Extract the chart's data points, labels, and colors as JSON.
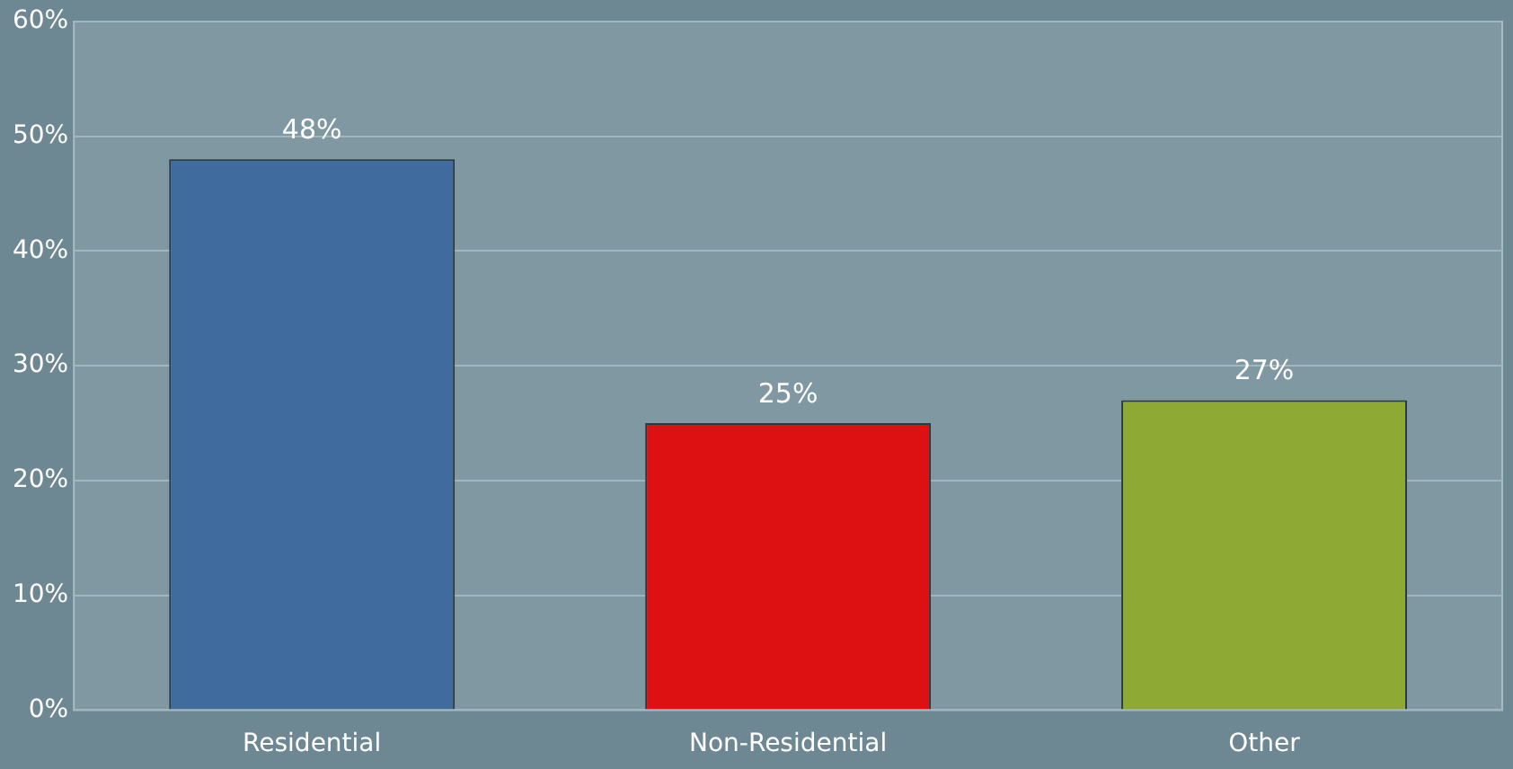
{
  "chart_data": {
    "type": "bar",
    "categories": [
      "Residential",
      "Non-Residential",
      "Other"
    ],
    "values": [
      48,
      25,
      27
    ],
    "colors": [
      "#3f6b9e",
      "#dd1111",
      "#8ea934"
    ],
    "value_labels": [
      "48%",
      "25%",
      "27%"
    ],
    "ylim": [
      0,
      60
    ],
    "yticks": [
      {
        "value": 0,
        "label": "0%"
      },
      {
        "value": 10,
        "label": "10%"
      },
      {
        "value": 20,
        "label": "20%"
      },
      {
        "value": 30,
        "label": "30%"
      },
      {
        "value": 40,
        "label": "40%"
      },
      {
        "value": 50,
        "label": "50%"
      },
      {
        "value": 60,
        "label": "60%"
      }
    ],
    "grid": "y",
    "legend": false
  }
}
